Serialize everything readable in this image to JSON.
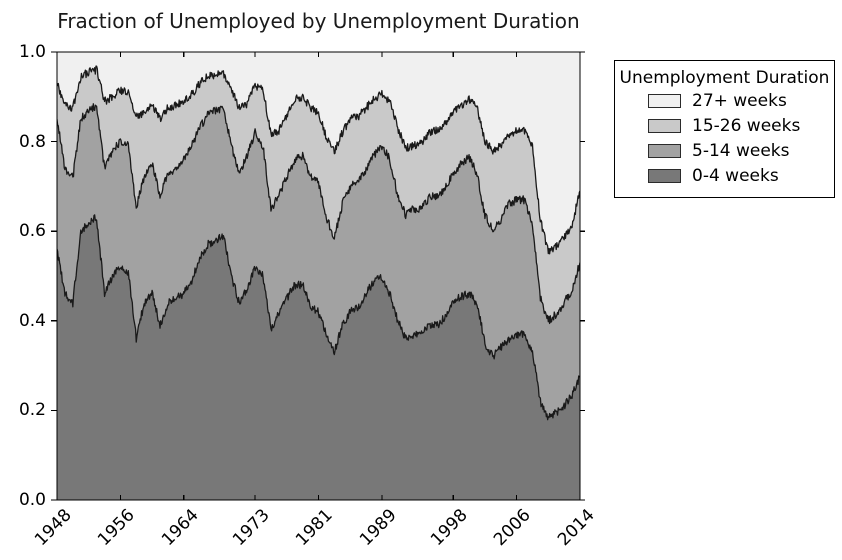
{
  "chart_data": {
    "type": "area",
    "stacked": true,
    "normalized": true,
    "title": "Fraction of Unemployed by Unemployment Duration",
    "xlabel": "",
    "ylabel": "",
    "xlim": [
      1948,
      2014
    ],
    "ylim": [
      0.0,
      1.0
    ],
    "grid": false,
    "x_ticks": {
      "years": [
        1948,
        1956,
        1964,
        1973,
        1981,
        1989,
        1998,
        2006,
        2014
      ],
      "labels": [
        "1948",
        "1956",
        "1964",
        "1973",
        "1981",
        "1989",
        "1998",
        "2006",
        "2014"
      ],
      "rotation_deg": 45
    },
    "y_ticks": {
      "values": [
        0.0,
        0.2,
        0.4,
        0.6,
        0.8,
        1.0
      ],
      "labels": [
        "0.0",
        "0.2",
        "0.4",
        "0.6",
        "0.8",
        "1.0"
      ]
    },
    "legend": {
      "title": "Unemployment Duration",
      "position": "outside-upper-right",
      "entries": [
        {
          "label": "27+ weeks",
          "color": "#f0f0f0"
        },
        {
          "label": "15-26 weeks",
          "color": "#c9c9c9"
        },
        {
          "label": "5-14 weeks",
          "color": "#a2a2a2"
        },
        {
          "label": "0-4 weeks",
          "color": "#787878"
        }
      ]
    },
    "edge_line_color": "#1a1a1a",
    "years": [
      1948,
      1949,
      1950,
      1951,
      1952,
      1953,
      1954,
      1955,
      1956,
      1957,
      1958,
      1959,
      1960,
      1961,
      1962,
      1963,
      1964,
      1965,
      1966,
      1967,
      1968,
      1969,
      1970,
      1971,
      1972,
      1973,
      1974,
      1975,
      1976,
      1977,
      1978,
      1979,
      1980,
      1981,
      1982,
      1983,
      1984,
      1985,
      1986,
      1987,
      1988,
      1989,
      1990,
      1991,
      1992,
      1993,
      1994,
      1995,
      1996,
      1997,
      1998,
      1999,
      2000,
      2001,
      2002,
      2003,
      2004,
      2005,
      2006,
      2007,
      2008,
      2009,
      2010,
      2011,
      2012,
      2013,
      2014
    ],
    "series": [
      {
        "name": "0-4 weeks",
        "color": "#787878",
        "values": [
          0.56,
          0.46,
          0.44,
          0.6,
          0.62,
          0.63,
          0.46,
          0.5,
          0.52,
          0.51,
          0.36,
          0.44,
          0.46,
          0.39,
          0.44,
          0.45,
          0.46,
          0.49,
          0.54,
          0.57,
          0.58,
          0.59,
          0.5,
          0.44,
          0.47,
          0.52,
          0.5,
          0.38,
          0.42,
          0.45,
          0.48,
          0.48,
          0.43,
          0.42,
          0.37,
          0.33,
          0.39,
          0.42,
          0.43,
          0.46,
          0.49,
          0.495,
          0.46,
          0.4,
          0.36,
          0.37,
          0.37,
          0.39,
          0.39,
          0.41,
          0.44,
          0.455,
          0.46,
          0.44,
          0.35,
          0.32,
          0.34,
          0.36,
          0.37,
          0.37,
          0.33,
          0.22,
          0.185,
          0.195,
          0.21,
          0.235,
          0.275
        ]
      },
      {
        "name": "5-14 weeks",
        "color": "#a2a2a2",
        "values": [
          0.29,
          0.28,
          0.28,
          0.25,
          0.25,
          0.25,
          0.28,
          0.28,
          0.28,
          0.28,
          0.295,
          0.28,
          0.29,
          0.29,
          0.29,
          0.29,
          0.3,
          0.3,
          0.29,
          0.29,
          0.29,
          0.285,
          0.29,
          0.29,
          0.3,
          0.3,
          0.29,
          0.27,
          0.26,
          0.27,
          0.28,
          0.29,
          0.29,
          0.29,
          0.26,
          0.255,
          0.27,
          0.28,
          0.28,
          0.275,
          0.28,
          0.295,
          0.3,
          0.28,
          0.275,
          0.28,
          0.28,
          0.285,
          0.29,
          0.285,
          0.29,
          0.295,
          0.305,
          0.29,
          0.285,
          0.285,
          0.285,
          0.3,
          0.3,
          0.3,
          0.285,
          0.23,
          0.215,
          0.22,
          0.23,
          0.235,
          0.255
        ]
      },
      {
        "name": "15-26 weeks",
        "color": "#c9c9c9",
        "values": [
          0.08,
          0.145,
          0.155,
          0.095,
          0.085,
          0.08,
          0.15,
          0.12,
          0.115,
          0.12,
          0.2,
          0.145,
          0.135,
          0.17,
          0.145,
          0.14,
          0.13,
          0.115,
          0.1,
          0.085,
          0.08,
          0.075,
          0.125,
          0.145,
          0.115,
          0.105,
          0.125,
          0.165,
          0.145,
          0.135,
          0.135,
          0.13,
          0.155,
          0.155,
          0.18,
          0.19,
          0.16,
          0.15,
          0.145,
          0.14,
          0.125,
          0.115,
          0.13,
          0.15,
          0.15,
          0.14,
          0.145,
          0.145,
          0.145,
          0.145,
          0.135,
          0.13,
          0.13,
          0.145,
          0.165,
          0.175,
          0.165,
          0.155,
          0.155,
          0.155,
          0.175,
          0.175,
          0.155,
          0.15,
          0.145,
          0.145,
          0.16
        ]
      },
      {
        "name": "27+ weeks",
        "color": "#f0f0f0",
        "values": [
          0.07,
          0.115,
          0.125,
          0.055,
          0.045,
          0.04,
          0.11,
          0.1,
          0.085,
          0.09,
          0.145,
          0.135,
          0.115,
          0.15,
          0.125,
          0.12,
          0.11,
          0.095,
          0.07,
          0.055,
          0.05,
          0.05,
          0.085,
          0.125,
          0.115,
          0.075,
          0.085,
          0.185,
          0.175,
          0.145,
          0.105,
          0.1,
          0.125,
          0.135,
          0.19,
          0.225,
          0.18,
          0.15,
          0.145,
          0.125,
          0.105,
          0.095,
          0.11,
          0.17,
          0.215,
          0.21,
          0.205,
          0.18,
          0.175,
          0.16,
          0.135,
          0.12,
          0.105,
          0.125,
          0.2,
          0.22,
          0.21,
          0.185,
          0.175,
          0.175,
          0.21,
          0.375,
          0.445,
          0.435,
          0.415,
          0.385,
          0.31
        ]
      }
    ]
  }
}
